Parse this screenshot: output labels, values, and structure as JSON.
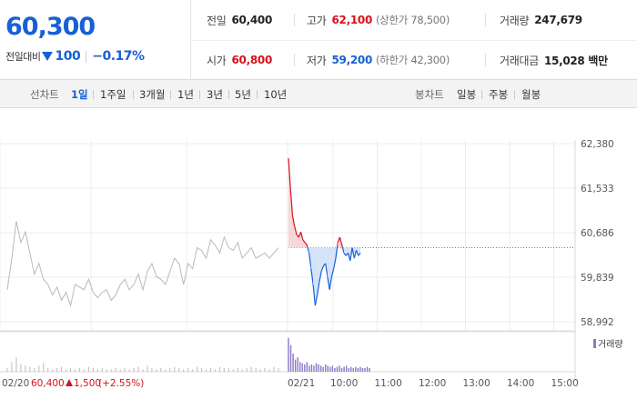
{
  "quote": {
    "current_price": "60,300",
    "change_label": "전일대비",
    "change_amount": "100",
    "change_rate": "−0.17%",
    "color_down": "#1760d6",
    "color_up": "#d6121c"
  },
  "stats": {
    "prev_close": {
      "label": "전일",
      "value": "60,400"
    },
    "high": {
      "label": "고가",
      "value": "62,100",
      "sub": "(상한가 78,500)"
    },
    "volume": {
      "label": "거래량",
      "value": "247,679"
    },
    "open": {
      "label": "시가",
      "value": "60,800"
    },
    "low": {
      "label": "저가",
      "value": "59,200",
      "sub": "(하한가 42,300)"
    },
    "trade_value": {
      "label": "거래대금",
      "value": "15,028 백만"
    }
  },
  "period_bar": {
    "line_label": "선차트",
    "line_items": [
      "1일",
      "1주일",
      "3개월",
      "1년",
      "3년",
      "5년",
      "10년"
    ],
    "active_item": "1일",
    "candle_label": "봉차트",
    "candle_items": [
      "일봉",
      "주봉",
      "월봉"
    ]
  },
  "chart_data": {
    "type": "line",
    "y_ticks": [
      "62,380",
      "61,533",
      "60,686",
      "59,839",
      "58,992"
    ],
    "y_tick_values": [
      62380,
      61533,
      60686,
      59839,
      58992
    ],
    "ylim": [
      58992,
      62380
    ],
    "reference_price": 60400,
    "prev_day": {
      "date_label": "02/20",
      "close": "60,400",
      "change": "1,500",
      "change_rate": "(+2.55%)",
      "values": [
        59600,
        60200,
        60900,
        60500,
        60700,
        60300,
        59900,
        60100,
        59800,
        59700,
        59500,
        59650,
        59400,
        59550,
        59300,
        59700,
        59650,
        59600,
        59800,
        59550,
        59450,
        59550,
        59600,
        59400,
        59500,
        59700,
        59800,
        59600,
        59700,
        59900,
        59600,
        59950,
        60100,
        59850,
        59800,
        59700,
        59950,
        60200,
        60100,
        59700,
        60100,
        60000,
        60400,
        60350,
        60200,
        60550,
        60450,
        60300,
        60600,
        60400,
        60350,
        60500,
        60200,
        60300,
        60400,
        60200,
        60250,
        60300,
        60200,
        60300,
        60400
      ]
    },
    "today": {
      "date_label": "02/21",
      "values": [
        62100,
        61500,
        61000,
        60800,
        60650,
        60600,
        60700,
        60550,
        60500,
        60450,
        60300,
        60000,
        59700,
        59300,
        59500,
        59750,
        59950,
        60050,
        60100,
        59850,
        59600,
        59850,
        60000,
        60200,
        60500,
        60600,
        60450,
        60300,
        60250,
        60300,
        60150,
        60400,
        60200,
        60350,
        60250,
        60300
      ]
    },
    "time_ticks": [
      "10:00",
      "11:00",
      "12:00",
      "13:00",
      "14:00",
      "15:00"
    ],
    "volume_label": "거래량",
    "volume_prev": [
      3,
      8,
      12,
      6,
      5,
      4,
      3,
      5,
      7,
      3,
      2,
      3,
      4,
      2,
      3,
      2,
      3,
      2,
      4,
      3,
      2,
      3,
      2,
      2,
      3,
      2,
      3,
      2,
      3,
      4,
      2,
      5,
      3,
      2,
      3,
      2,
      3,
      4,
      3,
      2,
      3,
      2,
      4,
      3,
      2,
      3,
      2,
      4,
      3,
      3,
      2,
      3,
      2,
      3,
      4,
      3,
      2,
      3,
      2,
      4,
      3
    ],
    "volume_today": [
      28,
      22,
      15,
      10,
      12,
      8,
      7,
      6,
      8,
      5,
      6,
      5,
      7,
      6,
      5,
      4,
      6,
      5,
      4,
      5,
      3,
      4,
      5,
      3,
      4,
      5,
      3,
      4,
      3,
      4,
      3,
      4,
      3,
      3,
      4,
      3
    ]
  }
}
